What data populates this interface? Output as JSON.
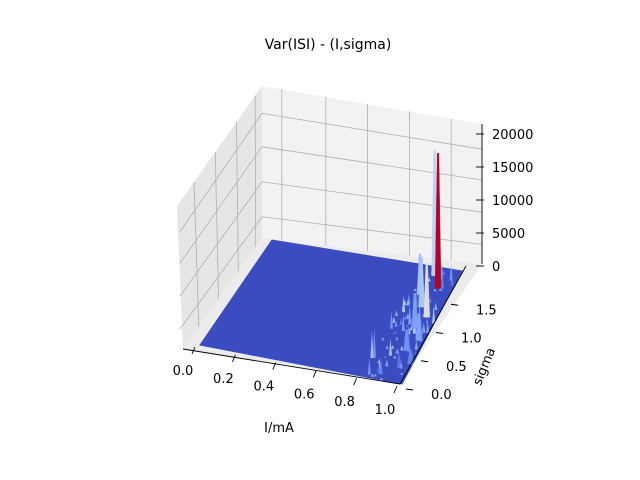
{
  "chart_data": {
    "type": "surface3d",
    "title": "Var(ISI) - (I,sigma)",
    "xlabel": "I/mA",
    "ylabel": "sigma",
    "zlabel": "",
    "xlim": [
      0.0,
      1.0
    ],
    "ylim": [
      0.0,
      2.0
    ],
    "zlim": [
      0,
      21000
    ],
    "x_ticks": [
      "0.0",
      "0.2",
      "0.4",
      "0.6",
      "0.8",
      "1.0"
    ],
    "y_ticks": [
      "0.0",
      "0.5",
      "1.0",
      "1.5"
    ],
    "z_ticks": [
      "0",
      "5000",
      "10000",
      "15000",
      "20000"
    ],
    "colormap": "coolwarm",
    "baseline_value": 0,
    "peaks": [
      {
        "x": 0.93,
        "y": 1.65,
        "z": 20500,
        "color": "#b40426"
      },
      {
        "x": 0.88,
        "y": 1.85,
        "z": 19000,
        "color": "#bcd2f7"
      },
      {
        "x": 0.95,
        "y": 1.15,
        "z": 8200,
        "color": "#dddcdc"
      },
      {
        "x": 0.9,
        "y": 1.3,
        "z": 7600,
        "color": "#aac7fd"
      },
      {
        "x": 0.86,
        "y": 1.5,
        "z": 6200,
        "color": "#9ebeff"
      },
      {
        "x": 0.92,
        "y": 0.95,
        "z": 5200,
        "color": "#7b9ff9"
      },
      {
        "x": 0.97,
        "y": 0.75,
        "z": 4100,
        "color": "#80a3fa"
      },
      {
        "x": 0.94,
        "y": 0.55,
        "z": 3200,
        "color": "#6f92f3"
      },
      {
        "x": 0.99,
        "y": 0.35,
        "z": 2200,
        "color": "#6282ea"
      }
    ],
    "grid": true
  }
}
